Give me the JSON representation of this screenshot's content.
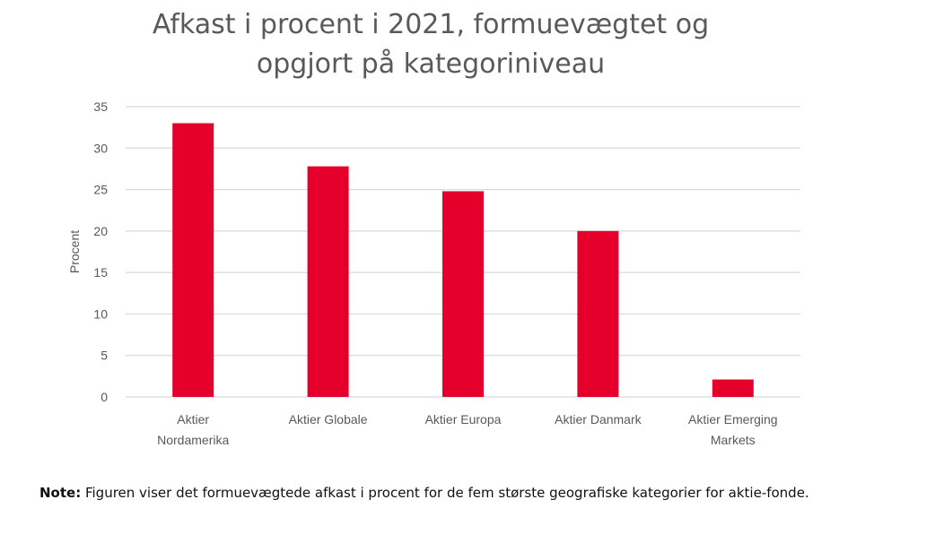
{
  "chart_data": {
    "type": "bar",
    "title": "Afkast i procent i 2021, formuevægtet og opgjort på kategoriniveau",
    "title_lines": [
      "Afkast i procent i 2021, formuevægtet og",
      "opgjort på kategoriniveau"
    ],
    "xlabel": "",
    "ylabel": "Procent",
    "ylim": [
      0,
      35
    ],
    "yticks": [
      "0",
      "5",
      "10",
      "15",
      "20",
      "25",
      "30",
      "35"
    ],
    "grid": true,
    "legend": "none",
    "bar_color": "#e4002b",
    "categories": [
      "Aktier Nordamerika",
      "Aktier Globale",
      "Aktier Europa",
      "Aktier Danmark",
      "Aktier Emerging Markets"
    ],
    "category_lines": [
      [
        "Aktier",
        "Nordamerika"
      ],
      [
        "Aktier Globale"
      ],
      [
        "Aktier Europa"
      ],
      [
        "Aktier Danmark"
      ],
      [
        "Aktier Emerging",
        "Markets"
      ]
    ],
    "values": [
      33,
      27.8,
      24.8,
      20,
      2.1
    ]
  },
  "note": {
    "label": "Note:",
    "text": " Figuren viser det formuevægtede afkast i procent for de fem største geografiske kategorier for aktie-fonde."
  }
}
